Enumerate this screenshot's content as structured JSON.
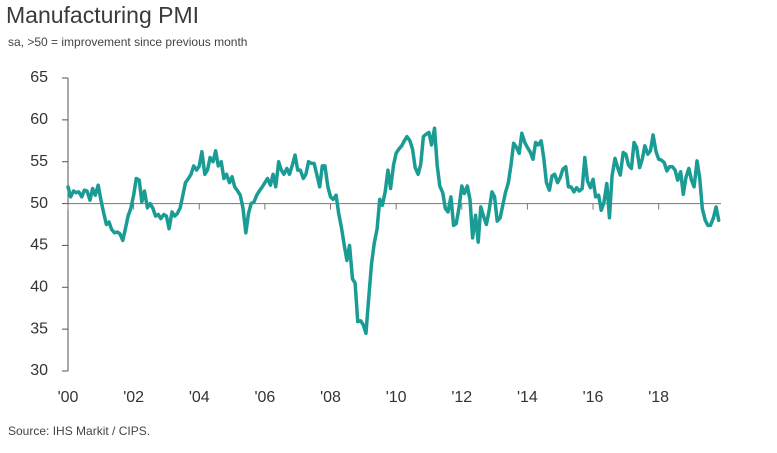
{
  "chart_data": {
    "type": "line",
    "title": "Manufacturing PMI",
    "subtitle": "sa, >50 = improvement since previous month",
    "source": "Source: IHS Markit / CIPS.",
    "color": "#1a9c95",
    "ylim": [
      30,
      65
    ],
    "yticks": [
      30,
      35,
      40,
      45,
      50,
      55,
      60,
      65
    ],
    "xlim": [
      2000,
      2019.9
    ],
    "xticks": [
      {
        "value": 2000,
        "label": "'00"
      },
      {
        "value": 2002,
        "label": "'02"
      },
      {
        "value": 2004,
        "label": "'04"
      },
      {
        "value": 2006,
        "label": "'06"
      },
      {
        "value": 2008,
        "label": "'08"
      },
      {
        "value": 2010,
        "label": "'10"
      },
      {
        "value": 2012,
        "label": "'12"
      },
      {
        "value": 2014,
        "label": "'14"
      },
      {
        "value": 2016,
        "label": "'16"
      },
      {
        "value": 2018,
        "label": "'18"
      }
    ],
    "x_axis_at": 50,
    "x": [
      2000.0,
      2000.08,
      2000.17,
      2000.25,
      2000.33,
      2000.42,
      2000.5,
      2000.58,
      2000.67,
      2000.75,
      2000.83,
      2000.92,
      2001.0,
      2001.08,
      2001.17,
      2001.25,
      2001.33,
      2001.42,
      2001.5,
      2001.58,
      2001.67,
      2001.75,
      2001.83,
      2001.92,
      2002.0,
      2002.08,
      2002.17,
      2002.25,
      2002.33,
      2002.42,
      2002.5,
      2002.58,
      2002.67,
      2002.75,
      2002.83,
      2002.92,
      2003.0,
      2003.08,
      2003.17,
      2003.25,
      2003.33,
      2003.42,
      2003.5,
      2003.58,
      2003.67,
      2003.75,
      2003.83,
      2003.92,
      2004.0,
      2004.08,
      2004.17,
      2004.25,
      2004.33,
      2004.42,
      2004.5,
      2004.58,
      2004.67,
      2004.75,
      2004.83,
      2004.92,
      2005.0,
      2005.08,
      2005.17,
      2005.25,
      2005.33,
      2005.42,
      2005.5,
      2005.58,
      2005.67,
      2005.75,
      2005.83,
      2005.92,
      2006.0,
      2006.08,
      2006.17,
      2006.25,
      2006.33,
      2006.42,
      2006.5,
      2006.58,
      2006.67,
      2006.75,
      2006.83,
      2006.92,
      2007.0,
      2007.08,
      2007.17,
      2007.25,
      2007.33,
      2007.42,
      2007.5,
      2007.58,
      2007.67,
      2007.75,
      2007.83,
      2007.92,
      2008.0,
      2008.08,
      2008.17,
      2008.25,
      2008.33,
      2008.42,
      2008.5,
      2008.58,
      2008.67,
      2008.75,
      2008.83,
      2008.92,
      2009.0,
      2009.08,
      2009.17,
      2009.25,
      2009.33,
      2009.42,
      2009.5,
      2009.58,
      2009.67,
      2009.75,
      2009.83,
      2009.92,
      2010.0,
      2010.08,
      2010.17,
      2010.25,
      2010.33,
      2010.42,
      2010.5,
      2010.58,
      2010.67,
      2010.75,
      2010.83,
      2010.92,
      2011.0,
      2011.08,
      2011.17,
      2011.25,
      2011.33,
      2011.42,
      2011.5,
      2011.58,
      2011.67,
      2011.75,
      2011.83,
      2011.92,
      2012.0,
      2012.08,
      2012.17,
      2012.25,
      2012.33,
      2012.42,
      2012.5,
      2012.58,
      2012.67,
      2012.75,
      2012.83,
      2012.92,
      2013.0,
      2013.08,
      2013.17,
      2013.25,
      2013.33,
      2013.42,
      2013.5,
      2013.58,
      2013.67,
      2013.75,
      2013.83,
      2013.92,
      2014.0,
      2014.08,
      2014.17,
      2014.25,
      2014.33,
      2014.42,
      2014.5,
      2014.58,
      2014.67,
      2014.75,
      2014.83,
      2014.92,
      2015.0,
      2015.08,
      2015.17,
      2015.25,
      2015.33,
      2015.42,
      2015.5,
      2015.58,
      2015.67,
      2015.75,
      2015.83,
      2015.92,
      2016.0,
      2016.08,
      2016.17,
      2016.25,
      2016.33,
      2016.42,
      2016.5,
      2016.58,
      2016.67,
      2016.75,
      2016.83,
      2016.92,
      2017.0,
      2017.08,
      2017.17,
      2017.25,
      2017.33,
      2017.42,
      2017.5,
      2017.58,
      2017.67,
      2017.75,
      2017.83,
      2017.92,
      2018.0,
      2018.08,
      2018.17,
      2018.25,
      2018.33,
      2018.42,
      2018.5,
      2018.58,
      2018.67,
      2018.75,
      2018.83,
      2018.92,
      2019.0,
      2019.08,
      2019.17,
      2019.25,
      2019.33,
      2019.42,
      2019.5,
      2019.58,
      2019.67,
      2019.75,
      2019.83
    ],
    "values": [
      52.0,
      50.8,
      51.5,
      51.3,
      51.4,
      50.8,
      51.6,
      51.5,
      50.4,
      51.8,
      51.0,
      52.2,
      50.5,
      49.0,
      47.5,
      47.8,
      46.9,
      46.5,
      46.6,
      46.4,
      45.6,
      47.0,
      48.5,
      49.5,
      51.0,
      53.0,
      52.8,
      50.2,
      51.5,
      49.5,
      50.0,
      49.5,
      48.5,
      48.7,
      48.2,
      48.7,
      48.5,
      47.0,
      49.0,
      48.5,
      48.8,
      49.5,
      51.0,
      52.5,
      53.0,
      53.5,
      54.5,
      54.0,
      54.5,
      56.2,
      53.5,
      54.0,
      55.5,
      55.0,
      56.3,
      54.5,
      55.0,
      53.0,
      53.5,
      52.5,
      53.2,
      52.0,
      51.5,
      51.0,
      49.5,
      46.5,
      48.8,
      50.0,
      50.2,
      51.0,
      51.5,
      52.0,
      52.5,
      53.0,
      52.2,
      53.5,
      52.0,
      55.0,
      54.0,
      53.5,
      54.2,
      53.5,
      54.5,
      55.8,
      54.0,
      54.0,
      53.0,
      53.5,
      55.0,
      54.8,
      54.8,
      53.5,
      52.0,
      54.5,
      54.5,
      52.0,
      50.8,
      50.5,
      51.0,
      48.8,
      47.2,
      45.0,
      43.2,
      45.0,
      41.0,
      40.5,
      35.9,
      36.0,
      35.5,
      34.5,
      39.0,
      42.8,
      45.2,
      47.0,
      50.5,
      49.8,
      51.5,
      54.0,
      51.8,
      54.6,
      56.0,
      56.5,
      56.9,
      57.5,
      58.0,
      57.5,
      56.5,
      54.3,
      53.5,
      54.7,
      58.0,
      58.3,
      58.5,
      57.0,
      59.0,
      54.6,
      52.1,
      51.3,
      49.4,
      49.0,
      50.8,
      47.4,
      47.6,
      49.6,
      52.1,
      51.2,
      52.1,
      50.5,
      45.9,
      48.6,
      45.4,
      49.6,
      48.4,
      47.5,
      49.1,
      51.4,
      50.8,
      47.9,
      48.3,
      49.8,
      51.3,
      52.5,
      54.6,
      57.2,
      56.7,
      56.0,
      58.4,
      57.3,
      56.7,
      56.2,
      55.3,
      57.3,
      57.0,
      57.5,
      55.4,
      52.5,
      51.6,
      53.3,
      53.5,
      52.5,
      53.1,
      54.1,
      54.4,
      52.0,
      52.0,
      51.4,
      51.9,
      51.5,
      51.8,
      55.5,
      52.7,
      51.9,
      52.9,
      50.8,
      51.0,
      49.2,
      50.1,
      52.4,
      48.3,
      53.3,
      55.4,
      54.3,
      53.4,
      56.1,
      55.9,
      54.6,
      54.2,
      57.3,
      56.7,
      54.3,
      55.3,
      56.9,
      55.9,
      56.3,
      58.2,
      56.2,
      55.3,
      55.2,
      54.9,
      53.9,
      54.4,
      54.4,
      54.0,
      52.8,
      53.8,
      51.1,
      53.1,
      54.2,
      52.8,
      52.0,
      55.1,
      53.1,
      49.4,
      48.0,
      47.4,
      47.4,
      48.3,
      49.6,
      48.0
    ]
  }
}
